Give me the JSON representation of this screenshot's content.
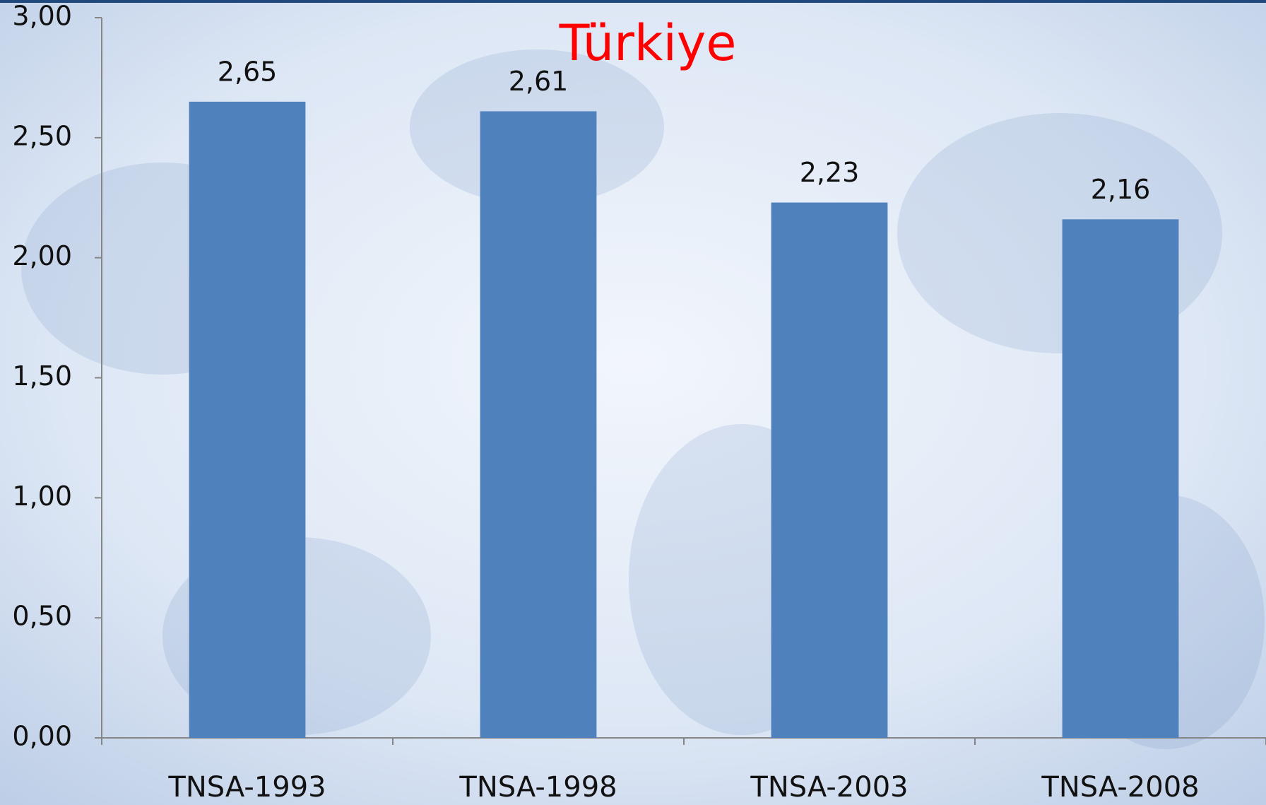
{
  "chart_data": {
    "type": "bar",
    "title": "Türkiye",
    "categories": [
      "TNSA-1993",
      "TNSA-1998",
      "TNSA-2003",
      "TNSA-2008"
    ],
    "values": [
      2.65,
      2.61,
      2.23,
      2.16
    ],
    "value_labels": [
      "2,65",
      "2,61",
      "2,23",
      "2,16"
    ],
    "color": "#4f81bd",
    "ylim": [
      0,
      3
    ],
    "yticks": [
      {
        "value": 0,
        "label": "0,00"
      },
      {
        "value": 0.5,
        "label": "0,50"
      },
      {
        "value": 1,
        "label": "1,00"
      },
      {
        "value": 1.5,
        "label": "1,50"
      },
      {
        "value": 2,
        "label": "2,00"
      },
      {
        "value": 2.5,
        "label": "2,50"
      },
      {
        "value": 3,
        "label": "3,00"
      }
    ],
    "grid": false
  }
}
